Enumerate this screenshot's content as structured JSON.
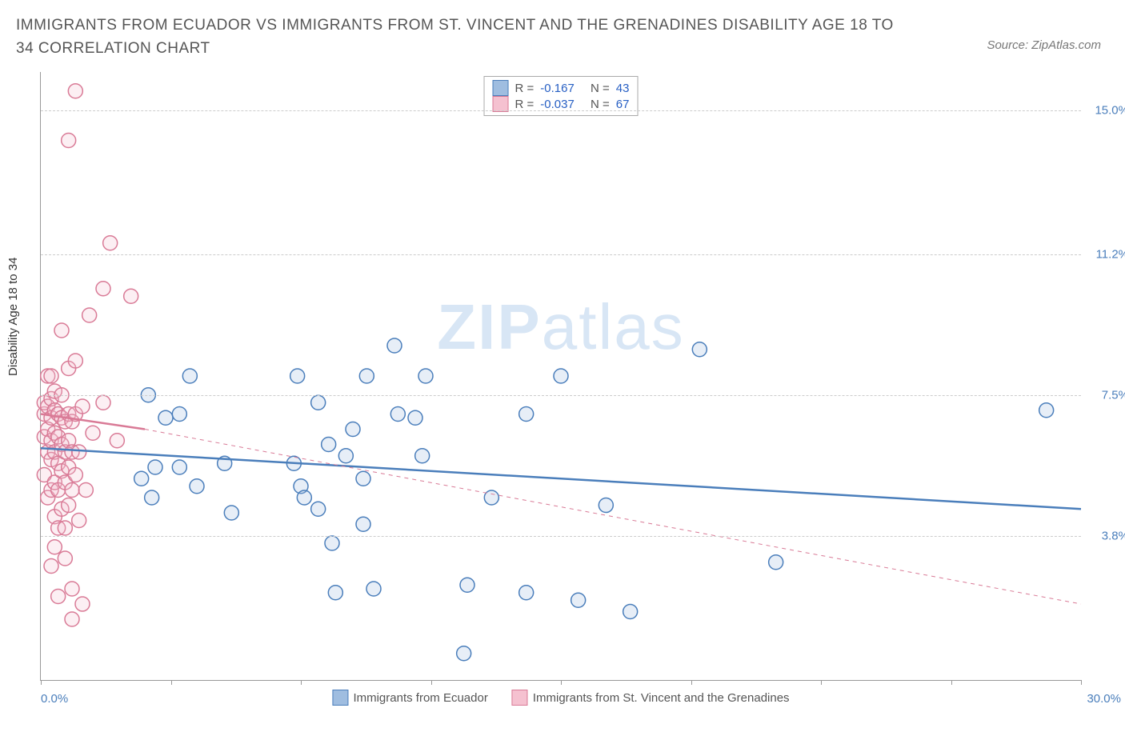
{
  "title": "IMMIGRANTS FROM ECUADOR VS IMMIGRANTS FROM ST. VINCENT AND THE GRENADINES DISABILITY AGE 18 TO 34 CORRELATION CHART",
  "source": "Source: ZipAtlas.com",
  "watermark_zip": "ZIP",
  "watermark_atlas": "atlas",
  "chart": {
    "type": "scatter",
    "ylabel": "Disability Age 18 to 34",
    "xlim": [
      0,
      30
    ],
    "ylim": [
      0,
      16
    ],
    "x_left_label": "0.0%",
    "x_right_label": "30.0%",
    "yticks": [
      {
        "value": 3.8,
        "label": "3.8%"
      },
      {
        "value": 7.5,
        "label": "7.5%"
      },
      {
        "value": 11.2,
        "label": "11.2%"
      },
      {
        "value": 15.0,
        "label": "15.0%"
      }
    ],
    "xtick_positions": [
      0,
      3.75,
      7.5,
      11.25,
      15,
      18.75,
      22.5,
      26.25,
      30
    ],
    "background_color": "#ffffff",
    "grid_color": "#cccccc",
    "marker_radius": 9,
    "marker_stroke_width": 1.5,
    "marker_fill_opacity": 0.25,
    "trend_line_width": 2.5,
    "trend_dash_width": 1,
    "series": {
      "ecuador": {
        "label": "Immigrants from Ecuador",
        "color_stroke": "#4a7ebb",
        "color_fill": "#9fbde0",
        "R": "-0.167",
        "N": "43",
        "trend": {
          "y_at_x0": 6.1,
          "y_at_xmax": 4.5
        },
        "points": [
          [
            2.9,
            5.3
          ],
          [
            3.1,
            7.5
          ],
          [
            3.2,
            4.8
          ],
          [
            3.3,
            5.6
          ],
          [
            3.6,
            6.9
          ],
          [
            4.0,
            7.0
          ],
          [
            4.0,
            5.6
          ],
          [
            4.3,
            8.0
          ],
          [
            4.5,
            5.1
          ],
          [
            5.3,
            5.7
          ],
          [
            5.5,
            4.4
          ],
          [
            7.3,
            5.7
          ],
          [
            7.4,
            8.0
          ],
          [
            7.5,
            5.1
          ],
          [
            7.6,
            4.8
          ],
          [
            8.0,
            7.3
          ],
          [
            8.0,
            4.5
          ],
          [
            8.3,
            6.2
          ],
          [
            8.4,
            3.6
          ],
          [
            8.5,
            2.3
          ],
          [
            8.8,
            5.9
          ],
          [
            9.0,
            6.6
          ],
          [
            9.3,
            4.1
          ],
          [
            9.3,
            5.3
          ],
          [
            9.4,
            8.0
          ],
          [
            9.6,
            2.4
          ],
          [
            10.2,
            8.8
          ],
          [
            10.3,
            7.0
          ],
          [
            10.8,
            6.9
          ],
          [
            11.0,
            5.9
          ],
          [
            11.1,
            8.0
          ],
          [
            12.2,
            0.7
          ],
          [
            12.3,
            2.5
          ],
          [
            13.0,
            4.8
          ],
          [
            14.0,
            2.3
          ],
          [
            14.0,
            7.0
          ],
          [
            15.0,
            8.0
          ],
          [
            15.5,
            2.1
          ],
          [
            16.3,
            4.6
          ],
          [
            17.0,
            1.8
          ],
          [
            19.0,
            8.7
          ],
          [
            21.2,
            3.1
          ],
          [
            29.0,
            7.1
          ]
        ]
      },
      "stvincent": {
        "label": "Immigrants from St. Vincent and the Grenadines",
        "color_stroke": "#d97a96",
        "color_fill": "#f5c1d0",
        "R": "-0.037",
        "N": "67",
        "trend_solid": {
          "x0": 0,
          "y0": 7.0,
          "x1": 3.0,
          "y1": 6.6
        },
        "trend_dash": {
          "x0": 3.0,
          "y0": 6.6,
          "x1": 30,
          "y1": 2.0
        },
        "points": [
          [
            0.1,
            5.4
          ],
          [
            0.1,
            6.4
          ],
          [
            0.1,
            7.0
          ],
          [
            0.1,
            7.3
          ],
          [
            0.2,
            4.8
          ],
          [
            0.2,
            6.0
          ],
          [
            0.2,
            6.6
          ],
          [
            0.2,
            7.2
          ],
          [
            0.2,
            8.0
          ],
          [
            0.3,
            3.0
          ],
          [
            0.3,
            5.0
          ],
          [
            0.3,
            5.8
          ],
          [
            0.3,
            6.3
          ],
          [
            0.3,
            6.9
          ],
          [
            0.3,
            7.4
          ],
          [
            0.3,
            8.0
          ],
          [
            0.4,
            3.5
          ],
          [
            0.4,
            4.3
          ],
          [
            0.4,
            5.2
          ],
          [
            0.4,
            6.0
          ],
          [
            0.4,
            6.5
          ],
          [
            0.4,
            7.1
          ],
          [
            0.4,
            7.6
          ],
          [
            0.5,
            2.2
          ],
          [
            0.5,
            4.0
          ],
          [
            0.5,
            5.0
          ],
          [
            0.5,
            5.7
          ],
          [
            0.5,
            6.4
          ],
          [
            0.5,
            7.0
          ],
          [
            0.6,
            4.5
          ],
          [
            0.6,
            5.5
          ],
          [
            0.6,
            6.2
          ],
          [
            0.6,
            6.9
          ],
          [
            0.6,
            7.5
          ],
          [
            0.6,
            9.2
          ],
          [
            0.7,
            3.2
          ],
          [
            0.7,
            4.0
          ],
          [
            0.7,
            5.2
          ],
          [
            0.7,
            6.0
          ],
          [
            0.7,
            6.8
          ],
          [
            0.8,
            14.2
          ],
          [
            0.8,
            4.6
          ],
          [
            0.8,
            5.6
          ],
          [
            0.8,
            6.3
          ],
          [
            0.8,
            7.0
          ],
          [
            0.8,
            8.2
          ],
          [
            0.9,
            2.4
          ],
          [
            0.9,
            5.0
          ],
          [
            0.9,
            6.0
          ],
          [
            0.9,
            6.8
          ],
          [
            0.9,
            1.6
          ],
          [
            1.0,
            15.5
          ],
          [
            1.0,
            5.4
          ],
          [
            1.0,
            7.0
          ],
          [
            1.0,
            8.4
          ],
          [
            1.1,
            4.2
          ],
          [
            1.1,
            6.0
          ],
          [
            1.2,
            2.0
          ],
          [
            1.2,
            7.2
          ],
          [
            1.3,
            5.0
          ],
          [
            1.4,
            9.6
          ],
          [
            1.5,
            6.5
          ],
          [
            1.8,
            10.3
          ],
          [
            1.8,
            7.3
          ],
          [
            2.0,
            11.5
          ],
          [
            2.2,
            6.3
          ],
          [
            2.6,
            10.1
          ]
        ]
      }
    }
  },
  "legend_top": {
    "r_label": "R =",
    "n_label": "N ="
  }
}
